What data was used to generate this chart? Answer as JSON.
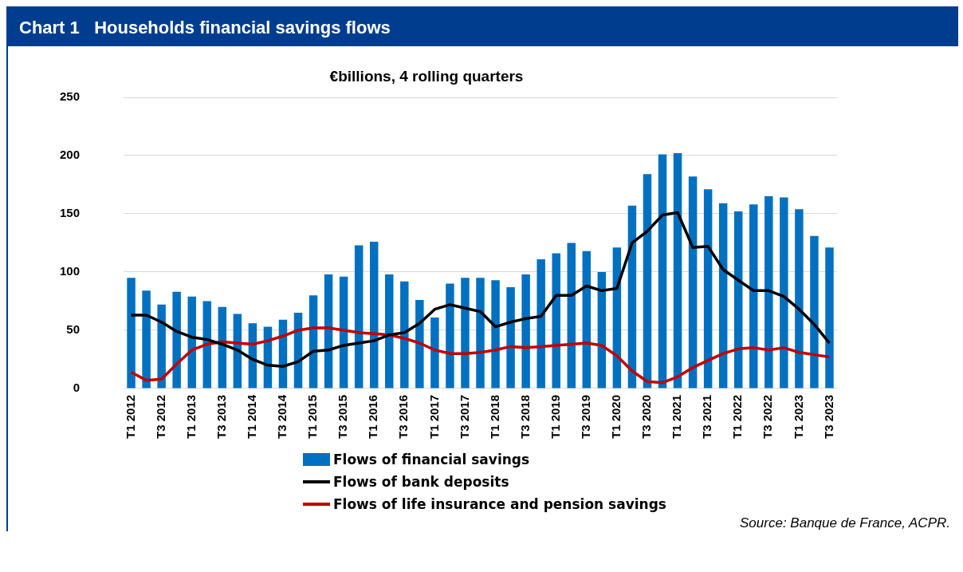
{
  "chart_data": {
    "type": "bar",
    "title": "Chart 1   Households financial savings flows",
    "subtitle": "€billions, 4 rolling quarters",
    "categories": [
      "T1 2012",
      null,
      "T3 2012",
      null,
      "T1 2013",
      null,
      "T3 2013",
      null,
      "T1 2014",
      null,
      "T3 2014",
      null,
      "T1 2015",
      null,
      "T3 2015",
      null,
      "T1 2016",
      null,
      "T3 2016",
      null,
      "T1 2017",
      null,
      "T3 2017",
      null,
      "T1 2018",
      null,
      "T3 2018",
      null,
      "T1 2019",
      null,
      "T3 2019",
      null,
      "T1 2020",
      null,
      "T3 2020",
      null,
      "T1 2021",
      null,
      "T3 2021",
      null,
      "T1 2022",
      null,
      "T3 2022",
      null,
      "T1 2023",
      null,
      "T3 2023"
    ],
    "series": [
      {
        "name": "Flows of financial savings",
        "color": "#0070c0",
        "values": [
          95,
          84,
          72,
          83,
          79,
          75,
          70,
          64,
          56,
          53,
          59,
          65,
          80,
          98,
          96,
          123,
          126,
          98,
          92,
          76,
          61,
          90,
          95,
          95,
          93,
          87,
          98,
          111,
          116,
          125,
          118,
          100,
          121,
          157,
          184,
          201,
          202,
          182,
          171,
          159,
          152,
          158,
          165,
          164,
          154,
          131,
          121
        ]
      },
      {
        "name": "Flows of bank deposits",
        "type": "line",
        "color": "#000000",
        "values": [
          63,
          63,
          57,
          49,
          44,
          42,
          38,
          33,
          25,
          20,
          19,
          23,
          32,
          33,
          37,
          39,
          41,
          46,
          48,
          56,
          68,
          72,
          69,
          66,
          53,
          57,
          60,
          62,
          80,
          80,
          88,
          84,
          86,
          125,
          135,
          149,
          151,
          121,
          122,
          102,
          93,
          84,
          84,
          79,
          68,
          55,
          39
        ]
      },
      {
        "name": "Flows of life insurance and pension savings",
        "type": "line",
        "color": "#c00000",
        "values": [
          14,
          7,
          8,
          21,
          33,
          38,
          40,
          39,
          38,
          41,
          45,
          50,
          52,
          52,
          50,
          48,
          47,
          46,
          43,
          39,
          33,
          30,
          30,
          31,
          33,
          36,
          35,
          36,
          37,
          38,
          39,
          37,
          28,
          15,
          6,
          5,
          10,
          18,
          24,
          30,
          34,
          35,
          33,
          35,
          31,
          29,
          27
        ]
      }
    ],
    "ylim": [
      0,
      250
    ],
    "yticks": [
      0,
      50,
      100,
      150,
      200,
      250
    ],
    "grid": "y",
    "legend": "bottom",
    "marker": "none",
    "line_style": "solid",
    "annotations": [
      "Source: Banque de France, ACPR."
    ]
  }
}
